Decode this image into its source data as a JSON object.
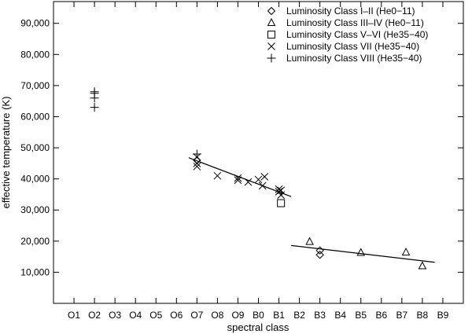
{
  "chart_data": {
    "type": "scatter",
    "xlabel": "spectral class",
    "ylabel": "effective temperature (K)",
    "categories": [
      "O1",
      "O2",
      "O3",
      "O4",
      "O5",
      "O6",
      "O7",
      "O8",
      "O9",
      "B0",
      "B1",
      "B2",
      "B3",
      "B4",
      "B5",
      "B6",
      "B7",
      "B8",
      "B9"
    ],
    "xlim": [
      0,
      20
    ],
    "ylim": [
      0,
      97000
    ],
    "yticks": [
      10000,
      20000,
      30000,
      40000,
      50000,
      60000,
      70000,
      80000,
      90000
    ],
    "ytick_labels": [
      "10,000",
      "20,000",
      "30,000",
      "40,000",
      "50,000",
      "60,000",
      "70,000",
      "80,000",
      "90,000"
    ],
    "grid": false,
    "legend_position": "top-right",
    "series": [
      {
        "name": "Luminosity Class I–II (He0−11)",
        "marker": "diamond",
        "points": [
          [
            7,
            46000
          ],
          [
            13,
            17000
          ],
          [
            13,
            15600
          ]
        ]
      },
      {
        "name": "Luminosity Class III–IV (He0−11)",
        "marker": "triangle",
        "points": [
          [
            12.5,
            19800
          ],
          [
            15,
            16300
          ],
          [
            17.2,
            16400
          ],
          [
            18,
            12000
          ]
        ]
      },
      {
        "name": "Luminosity Class V–VI (He35−40)",
        "marker": "square",
        "points": [
          [
            11.1,
            32200
          ]
        ]
      },
      {
        "name": "Luminosity Class VII (He35−40)",
        "marker": "x",
        "points": [
          [
            7,
            44000
          ],
          [
            7,
            45000
          ],
          [
            7,
            47000
          ],
          [
            8,
            41000
          ],
          [
            9,
            39600
          ],
          [
            9,
            40300
          ],
          [
            9.5,
            39000
          ],
          [
            10,
            39800
          ],
          [
            10.2,
            37800
          ],
          [
            10.3,
            40700
          ],
          [
            11,
            36700
          ],
          [
            11,
            35900
          ],
          [
            11.1,
            36300
          ],
          [
            11.1,
            34800
          ]
        ]
      },
      {
        "name": "Luminosity Class VIII (He35−40)",
        "marker": "plus",
        "points": [
          [
            2,
            66000
          ],
          [
            2,
            67500
          ],
          [
            2,
            68000
          ],
          [
            2,
            63000
          ],
          [
            7,
            48000
          ]
        ]
      }
    ],
    "fit_lines": [
      {
        "x": [
          6.6,
          11.6
        ],
        "y": [
          46800,
          34300
        ]
      },
      {
        "x": [
          11.6,
          18.6
        ],
        "y": [
          18600,
          13200
        ]
      }
    ]
  }
}
